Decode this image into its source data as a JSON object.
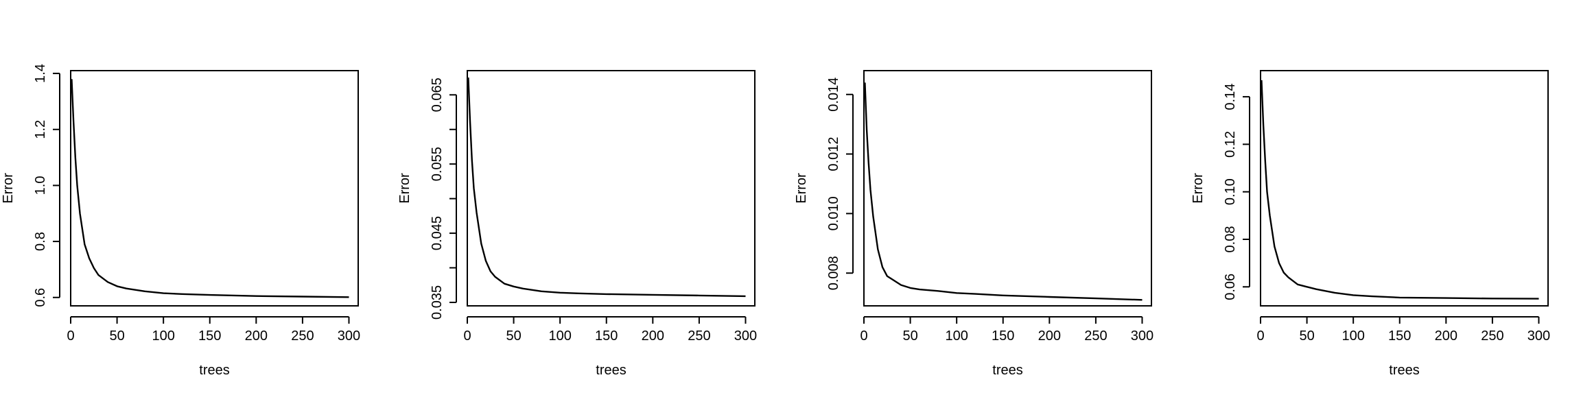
{
  "chart_data": [
    {
      "type": "line",
      "xlabel": "trees",
      "ylabel": "Error",
      "xlim": [
        0,
        310
      ],
      "ylim": [
        0.57,
        1.41
      ],
      "x_ticks": [
        0,
        50,
        100,
        150,
        200,
        250,
        300
      ],
      "x_tick_labels": [
        "0",
        "50",
        "100",
        "150",
        "200",
        "250",
        "300"
      ],
      "y_ticks": [
        0.6,
        0.8,
        1.0,
        1.2,
        1.4
      ],
      "y_tick_labels": [
        "0.6",
        "0.8",
        "1.0",
        "1.2",
        "1.4"
      ],
      "grid": false,
      "series": [
        {
          "x": [
            1,
            3,
            5,
            7,
            10,
            15,
            20,
            25,
            30,
            40,
            50,
            60,
            80,
            100,
            120,
            150,
            200,
            250,
            300
          ],
          "values": [
            1.38,
            1.23,
            1.1,
            1.0,
            0.9,
            0.79,
            0.74,
            0.705,
            0.68,
            0.655,
            0.64,
            0.632,
            0.622,
            0.615,
            0.612,
            0.609,
            0.605,
            0.603,
            0.601
          ]
        }
      ]
    },
    {
      "type": "line",
      "xlabel": "trees",
      "ylabel": "Error",
      "xlim": [
        0,
        310
      ],
      "ylim": [
        0.0345,
        0.0685
      ],
      "x_ticks": [
        0,
        50,
        100,
        150,
        200,
        250,
        300
      ],
      "x_tick_labels": [
        "0",
        "50",
        "100",
        "150",
        "200",
        "250",
        "300"
      ],
      "y_ticks": [
        0.035,
        0.04,
        0.045,
        0.05,
        0.055,
        0.06,
        0.065
      ],
      "y_tick_labels": [
        "0.035",
        "",
        "0.045",
        "",
        "0.055",
        "",
        "0.065"
      ],
      "grid": false,
      "series": [
        {
          "x": [
            1,
            3,
            5,
            7,
            10,
            15,
            20,
            25,
            30,
            40,
            50,
            60,
            80,
            100,
            120,
            150,
            200,
            250,
            300
          ],
          "values": [
            0.0675,
            0.061,
            0.0555,
            0.0515,
            0.048,
            0.0435,
            0.041,
            0.0395,
            0.0387,
            0.0377,
            0.0373,
            0.037,
            0.0366,
            0.0364,
            0.0363,
            0.0362,
            0.0361,
            0.036,
            0.0359
          ]
        }
      ]
    },
    {
      "type": "line",
      "xlabel": "trees",
      "ylabel": "Error",
      "xlim": [
        0,
        310
      ],
      "ylim": [
        0.0069,
        0.0148
      ],
      "x_ticks": [
        0,
        50,
        100,
        150,
        200,
        250,
        300
      ],
      "x_tick_labels": [
        "0",
        "50",
        "100",
        "150",
        "200",
        "250",
        "300"
      ],
      "y_ticks": [
        0.008,
        0.01,
        0.012,
        0.014
      ],
      "y_tick_labels": [
        "0.008",
        "0.010",
        "0.012",
        "0.014"
      ],
      "grid": false,
      "series": [
        {
          "x": [
            1,
            3,
            5,
            7,
            10,
            15,
            20,
            25,
            30,
            40,
            50,
            60,
            80,
            100,
            120,
            150,
            200,
            250,
            300
          ],
          "values": [
            0.0144,
            0.0128,
            0.0117,
            0.0108,
            0.0099,
            0.0088,
            0.0082,
            0.0079,
            0.0078,
            0.0076,
            0.0075,
            0.00745,
            0.0074,
            0.00733,
            0.0073,
            0.00725,
            0.0072,
            0.00715,
            0.0071
          ]
        }
      ]
    },
    {
      "type": "line",
      "xlabel": "trees",
      "ylabel": "Error",
      "xlim": [
        0,
        310
      ],
      "ylim": [
        0.052,
        0.151
      ],
      "x_ticks": [
        0,
        50,
        100,
        150,
        200,
        250,
        300
      ],
      "x_tick_labels": [
        "0",
        "50",
        "100",
        "150",
        "200",
        "250",
        "300"
      ],
      "y_ticks": [
        0.06,
        0.08,
        0.1,
        0.12,
        0.14
      ],
      "y_tick_labels": [
        "0.06",
        "0.08",
        "0.10",
        "0.12",
        "0.14"
      ],
      "grid": false,
      "series": [
        {
          "x": [
            1,
            3,
            5,
            7,
            10,
            15,
            20,
            25,
            30,
            40,
            50,
            60,
            80,
            100,
            120,
            150,
            200,
            250,
            300
          ],
          "values": [
            0.147,
            0.128,
            0.113,
            0.1,
            0.09,
            0.077,
            0.07,
            0.066,
            0.064,
            0.061,
            0.06,
            0.059,
            0.0575,
            0.0565,
            0.056,
            0.0555,
            0.0553,
            0.0551,
            0.055
          ]
        }
      ]
    }
  ]
}
